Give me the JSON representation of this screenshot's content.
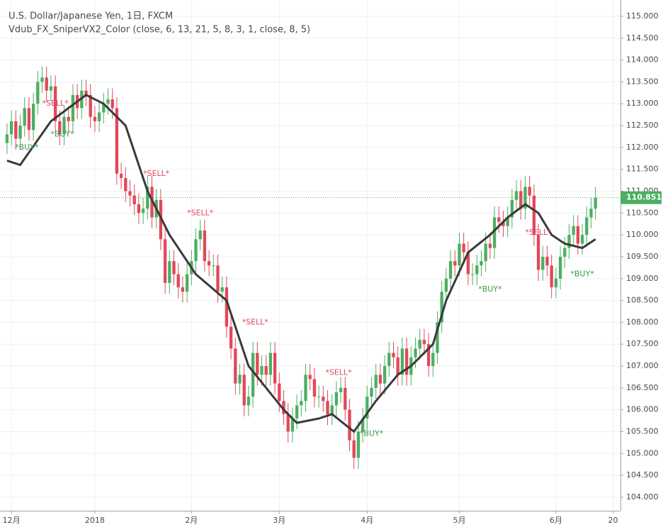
{
  "chart_data": {
    "type": "candlestick",
    "title": "U.S. Dollar/Japanese Yen, 1日, FXCM",
    "subtitle": "Vdub_FX_SniperVX2_Color (close, 6, 13, 21, 5, 8, 3, 1, close, 8, 5)",
    "xlim": [
      -1.6,
      139.7
    ],
    "xticks": [
      {
        "value": 1,
        "label": "12月"
      },
      {
        "value": 20,
        "label": "2018"
      },
      {
        "value": 42,
        "label": "2月"
      },
      {
        "value": 62,
        "label": "3月"
      },
      {
        "value": 82,
        "label": "4月"
      },
      {
        "value": 103,
        "label": "5月"
      },
      {
        "value": 125,
        "label": "6月"
      },
      {
        "value": 138,
        "label": "20"
      }
    ],
    "ylim": [
      103.69,
      115.373
    ],
    "yticks": [
      {
        "value": 104,
        "label": "104.000"
      },
      {
        "value": 104.5,
        "label": "104.500"
      },
      {
        "value": 105,
        "label": "105.000"
      },
      {
        "value": 105.5,
        "label": "105.500"
      },
      {
        "value": 106,
        "label": "106.000"
      },
      {
        "value": 106.5,
        "label": "106.500"
      },
      {
        "value": 107,
        "label": "107.000"
      },
      {
        "value": 107.5,
        "label": "107.500"
      },
      {
        "value": 108,
        "label": "108.000"
      },
      {
        "value": 108.5,
        "label": "108.500"
      },
      {
        "value": 109,
        "label": "109.000"
      },
      {
        "value": 109.5,
        "label": "109.500"
      },
      {
        "value": 110,
        "label": "110.000"
      },
      {
        "value": 110.5,
        "label": "110.500"
      },
      {
        "value": 111,
        "label": "111.000"
      },
      {
        "value": 111.5,
        "label": "111.500"
      },
      {
        "value": 112,
        "label": "112.000"
      },
      {
        "value": 112.5,
        "label": "112.500"
      },
      {
        "value": 113,
        "label": "113.000"
      },
      {
        "value": 113.5,
        "label": "113.500"
      },
      {
        "value": 114,
        "label": "114.000"
      },
      {
        "value": 114.5,
        "label": "114.500"
      },
      {
        "value": 115,
        "label": "115.000"
      }
    ],
    "grid": true,
    "up_color": "#4caf62",
    "down_color": "#e2485a",
    "open": [
      112.1,
      112.3,
      112.6,
      112.2,
      112.5,
      112.9,
      112.4,
      113.0,
      113.5,
      113.6,
      113.3,
      113.4,
      112.6,
      112.3,
      112.7,
      112.6,
      113.2,
      112.9,
      113.3,
      113.2,
      112.7,
      112.6,
      112.8,
      113.0,
      113.1,
      112.9,
      111.4,
      111.3,
      111.0,
      110.9,
      110.7,
      110.5,
      110.6,
      111.1,
      110.4,
      110.8,
      109.9,
      108.9,
      109.4,
      109.1,
      108.8,
      108.7,
      109.1,
      109.4,
      109.9,
      110.1,
      109.4,
      109.3,
      109.3,
      108.7,
      108.8,
      107.9,
      107.4,
      106.6,
      106.8,
      106.1,
      106.3,
      107.3,
      106.8,
      107.0,
      106.8,
      107.3,
      106.6,
      106.2,
      105.9,
      105.5,
      105.8,
      106.1,
      106.2,
      106.8,
      106.7,
      106.3,
      106.3,
      106.2,
      105.9,
      106.1,
      106.4,
      106.5,
      106.0,
      105.3,
      104.9,
      105.5,
      105.8,
      106.3,
      106.5,
      106.8,
      106.6,
      107.0,
      107.3,
      107.2,
      106.8,
      107.4,
      106.8,
      107.2,
      107.4,
      107.6,
      107.5,
      107.0,
      107.3,
      108.0,
      108.7,
      109.0,
      109.4,
      109.3,
      109.8,
      109.6,
      109.1,
      109.1,
      109.3,
      109.4,
      109.8,
      109.7,
      110.4,
      110.3,
      110.2,
      110.4,
      110.8,
      111.0,
      110.6,
      111.1,
      110.9,
      110.0,
      109.2,
      109.5,
      109.3,
      108.8,
      109.0,
      109.5,
      109.7,
      110.0,
      110.2,
      109.8,
      110.0,
      110.4,
      110.6
    ],
    "high": [
      112.55,
      112.85,
      112.85,
      112.75,
      113.15,
      113.15,
      113.25,
      113.75,
      113.85,
      113.85,
      113.65,
      113.65,
      112.85,
      112.95,
      112.95,
      113.45,
      113.45,
      113.55,
      113.55,
      113.45,
      112.95,
      113.05,
      113.25,
      113.35,
      113.35,
      113.15,
      111.65,
      111.55,
      111.25,
      111.15,
      110.95,
      110.85,
      111.35,
      111.35,
      111.05,
      111.05,
      110.15,
      109.65,
      109.65,
      109.35,
      109.05,
      109.35,
      109.65,
      110.15,
      110.35,
      110.35,
      109.65,
      109.55,
      109.55,
      109.05,
      109.05,
      108.15,
      107.65,
      107.05,
      107.05,
      106.55,
      107.55,
      107.55,
      107.25,
      107.25,
      107.55,
      107.55,
      106.85,
      106.45,
      106.15,
      106.05,
      106.35,
      106.45,
      107.05,
      107.05,
      106.95,
      106.55,
      106.55,
      106.45,
      106.35,
      106.65,
      106.75,
      106.75,
      106.25,
      105.55,
      105.75,
      106.05,
      106.55,
      106.75,
      107.05,
      107.05,
      107.25,
      107.55,
      107.55,
      107.45,
      107.65,
      107.65,
      107.45,
      107.65,
      107.85,
      107.85,
      107.75,
      107.55,
      108.25,
      108.95,
      109.25,
      109.65,
      109.65,
      110.05,
      110.05,
      109.85,
      109.35,
      109.55,
      109.65,
      110.05,
      110.05,
      110.65,
      110.65,
      110.55,
      110.65,
      111.05,
      111.25,
      111.25,
      111.35,
      111.35,
      111.15,
      110.25,
      109.75,
      109.75,
      109.55,
      109.25,
      109.75,
      109.95,
      110.25,
      110.45,
      110.45,
      110.25,
      110.65,
      110.85,
      111.1
    ],
    "low": [
      111.85,
      112.05,
      111.95,
      111.95,
      112.25,
      112.15,
      112.15,
      112.75,
      113.25,
      113.05,
      113.05,
      112.35,
      112.05,
      112.05,
      112.35,
      112.35,
      112.65,
      112.65,
      112.95,
      112.45,
      112.35,
      112.35,
      112.55,
      112.75,
      112.65,
      111.15,
      111.05,
      110.75,
      110.65,
      110.45,
      110.25,
      110.25,
      110.35,
      110.15,
      110.15,
      109.65,
      108.65,
      108.65,
      108.85,
      108.55,
      108.45,
      108.45,
      108.85,
      109.15,
      109.65,
      109.15,
      109.05,
      109.05,
      108.45,
      108.45,
      107.65,
      107.15,
      106.35,
      106.35,
      105.85,
      105.85,
      106.05,
      106.55,
      106.55,
      106.55,
      106.55,
      106.35,
      105.95,
      105.65,
      105.25,
      105.25,
      105.55,
      105.85,
      105.95,
      106.45,
      106.05,
      106.05,
      105.95,
      105.65,
      105.65,
      105.85,
      106.15,
      105.75,
      105.05,
      104.65,
      104.65,
      105.25,
      105.55,
      106.05,
      106.25,
      106.35,
      106.35,
      106.75,
      106.95,
      106.55,
      106.55,
      106.55,
      106.55,
      106.95,
      107.15,
      107.25,
      106.75,
      106.75,
      107.05,
      107.75,
      108.45,
      108.75,
      109.05,
      109.05,
      109.35,
      108.85,
      108.85,
      108.85,
      109.05,
      109.15,
      109.45,
      109.45,
      110.05,
      109.95,
      109.95,
      110.15,
      110.55,
      110.35,
      110.35,
      110.65,
      109.75,
      108.95,
      108.95,
      109.05,
      108.55,
      108.55,
      108.75,
      109.25,
      109.45,
      109.75,
      109.55,
      109.55,
      109.75,
      110.15,
      110.35
    ],
    "close": [
      112.3,
      112.6,
      112.2,
      112.5,
      112.9,
      112.4,
      113.0,
      113.5,
      113.6,
      113.3,
      113.4,
      112.6,
      112.3,
      112.7,
      112.6,
      113.2,
      112.9,
      113.3,
      113.2,
      112.7,
      112.6,
      112.8,
      113.0,
      113.1,
      112.9,
      111.4,
      111.3,
      111.0,
      110.9,
      110.7,
      110.5,
      110.6,
      111.1,
      110.4,
      110.8,
      109.9,
      108.9,
      109.4,
      109.1,
      108.8,
      108.7,
      109.1,
      109.4,
      109.9,
      110.1,
      109.4,
      109.3,
      109.3,
      108.7,
      108.8,
      107.9,
      107.4,
      106.6,
      106.8,
      106.1,
      106.3,
      107.3,
      106.8,
      107.0,
      106.8,
      107.3,
      106.6,
      106.2,
      105.9,
      105.5,
      105.8,
      106.1,
      106.2,
      106.8,
      106.7,
      106.3,
      106.3,
      106.2,
      105.9,
      106.1,
      106.4,
      106.5,
      106.0,
      105.3,
      104.9,
      105.5,
      105.8,
      106.3,
      106.5,
      106.8,
      106.6,
      107.0,
      107.3,
      107.2,
      106.8,
      107.4,
      106.8,
      107.2,
      107.4,
      107.6,
      107.5,
      107.0,
      107.3,
      108.0,
      108.7,
      109.0,
      109.4,
      109.3,
      109.8,
      109.6,
      109.1,
      109.1,
      109.3,
      109.4,
      109.8,
      109.7,
      110.4,
      110.3,
      110.2,
      110.4,
      110.8,
      111.0,
      110.6,
      111.1,
      110.9,
      110.0,
      109.2,
      109.5,
      109.3,
      108.8,
      109.0,
      109.5,
      109.7,
      110.0,
      110.2,
      109.8,
      110.0,
      110.4,
      110.6,
      110.851
    ],
    "ma": {
      "color": "#3a3a3a",
      "x": [
        0,
        3,
        10,
        18,
        22,
        27,
        32,
        37,
        43,
        50,
        55,
        59,
        63,
        66,
        71,
        74,
        79,
        84,
        89,
        92,
        97,
        100,
        105,
        110,
        114,
        118,
        121,
        124,
        127,
        131,
        134
      ],
      "values": [
        111.7,
        111.6,
        112.6,
        113.2,
        113.0,
        112.5,
        111.0,
        110.0,
        109.1,
        108.5,
        107.0,
        106.5,
        106.0,
        105.7,
        105.8,
        105.9,
        105.5,
        106.2,
        106.8,
        107.0,
        107.5,
        108.5,
        109.6,
        110.0,
        110.4,
        110.7,
        110.5,
        110.0,
        109.8,
        109.7,
        109.9
      ]
    },
    "annotations": [
      {
        "text": "*BUY*",
        "x": 4.5,
        "y": 112.0,
        "color": "#3a9a4a"
      },
      {
        "text": "*SELL*",
        "x": 11,
        "y": 113.0,
        "color": "#e2485a"
      },
      {
        "text": "*BUY*",
        "x": 12.6,
        "y": 112.3,
        "color": "#3a9a4a"
      },
      {
        "text": "*SELL*",
        "x": 34,
        "y": 111.4,
        "color": "#e2485a"
      },
      {
        "text": "*SELL*",
        "x": 44,
        "y": 110.5,
        "color": "#e2485a"
      },
      {
        "text": "*SELL*",
        "x": 56.5,
        "y": 108.0,
        "color": "#e2485a"
      },
      {
        "text": "*SELL*",
        "x": 75.5,
        "y": 106.85,
        "color": "#e2485a"
      },
      {
        "text": "*BUY*",
        "x": 83,
        "y": 105.45,
        "color": "#3a9a4a"
      },
      {
        "text": "*BUY*",
        "x": 110,
        "y": 108.75,
        "color": "#3a9a4a"
      },
      {
        "text": "*SELL*",
        "x": 121,
        "y": 110.05,
        "color": "#e2485a"
      },
      {
        "text": "*BUY*",
        "x": 131,
        "y": 109.1,
        "color": "#3a9a4a"
      }
    ]
  }
}
